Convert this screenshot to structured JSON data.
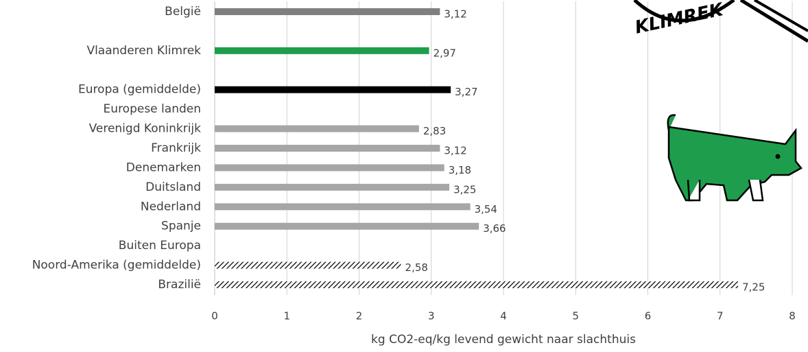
{
  "chart_data": {
    "type": "hbar",
    "categories": [
      "België",
      null,
      "Vlaanderen Klimrek",
      null,
      "Europa (gemiddelde)",
      "Europese landen",
      "Verenigd Koninkrijk",
      "Frankrijk",
      "Denemarken",
      "Duitsland",
      "Nederland",
      "Spanje",
      "Buiten Europa",
      "Noord-Amerika (gemiddelde)",
      "Brazilië"
    ],
    "values": [
      3.12,
      null,
      2.97,
      null,
      3.27,
      null,
      2.83,
      3.12,
      3.18,
      3.25,
      3.54,
      3.66,
      null,
      2.58,
      7.25
    ],
    "value_labels": [
      "3,12",
      null,
      "2,97",
      null,
      "3,27",
      null,
      "2,83",
      "3,12",
      "3,18",
      "3,25",
      "3,54",
      "3,66",
      null,
      "2,58",
      "7,25"
    ],
    "colors": [
      "#7f7f7f",
      null,
      "#1e9e4c",
      null,
      "#000000",
      null,
      "#a6a6a6",
      "#a6a6a6",
      "#a6a6a6",
      "#a6a6a6",
      "#a6a6a6",
      "#a6a6a6",
      null,
      "#000000",
      "#000000"
    ],
    "hatched": [
      false,
      null,
      false,
      null,
      false,
      null,
      false,
      false,
      false,
      false,
      false,
      false,
      null,
      true,
      true
    ],
    "xlabel": "kg CO2-eq/kg levend gewicht naar slachthuis",
    "xlim": [
      0,
      8
    ],
    "xticks": [
      0,
      1,
      2,
      3,
      4,
      5,
      6,
      7,
      8
    ],
    "grid": true,
    "annotations": [
      "KLIMREK"
    ]
  }
}
